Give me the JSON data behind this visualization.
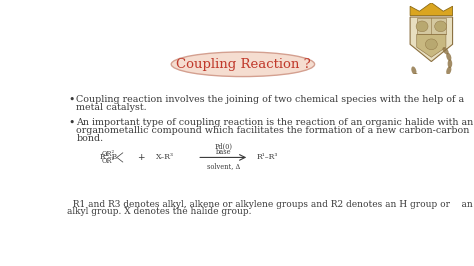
{
  "bg_color": "#ffffff",
  "title": "Coupling Reaction ?",
  "title_color": "#c0392b",
  "title_bg_color": "#f5ddd0",
  "title_border_color": "#d4a090",
  "bullet1_line1": "Coupling reaction involves the joining of two chemical species with the help of a",
  "bullet1_line2": "metal catalyst.",
  "bullet2_line1": "An important type of coupling reaction is the reaction of an organic halide with an",
  "bullet2_line2": "organometallic compound which facilitates the formation of a new carbon-carbon",
  "bullet2_line3": "bond.",
  "footer_line1": "  R1 and R3 denotes alkyl, alkene or alkylene groups and R2 denotes an H group or    an",
  "footer_line2": "alkyl group. X denotes the halide group.",
  "text_color": "#3a3a3a",
  "font_size_bullet": 6.8,
  "font_size_title": 9.5,
  "font_size_footer": 6.5,
  "font_size_reaction": 5.5,
  "font_size_reaction_annot": 4.8
}
